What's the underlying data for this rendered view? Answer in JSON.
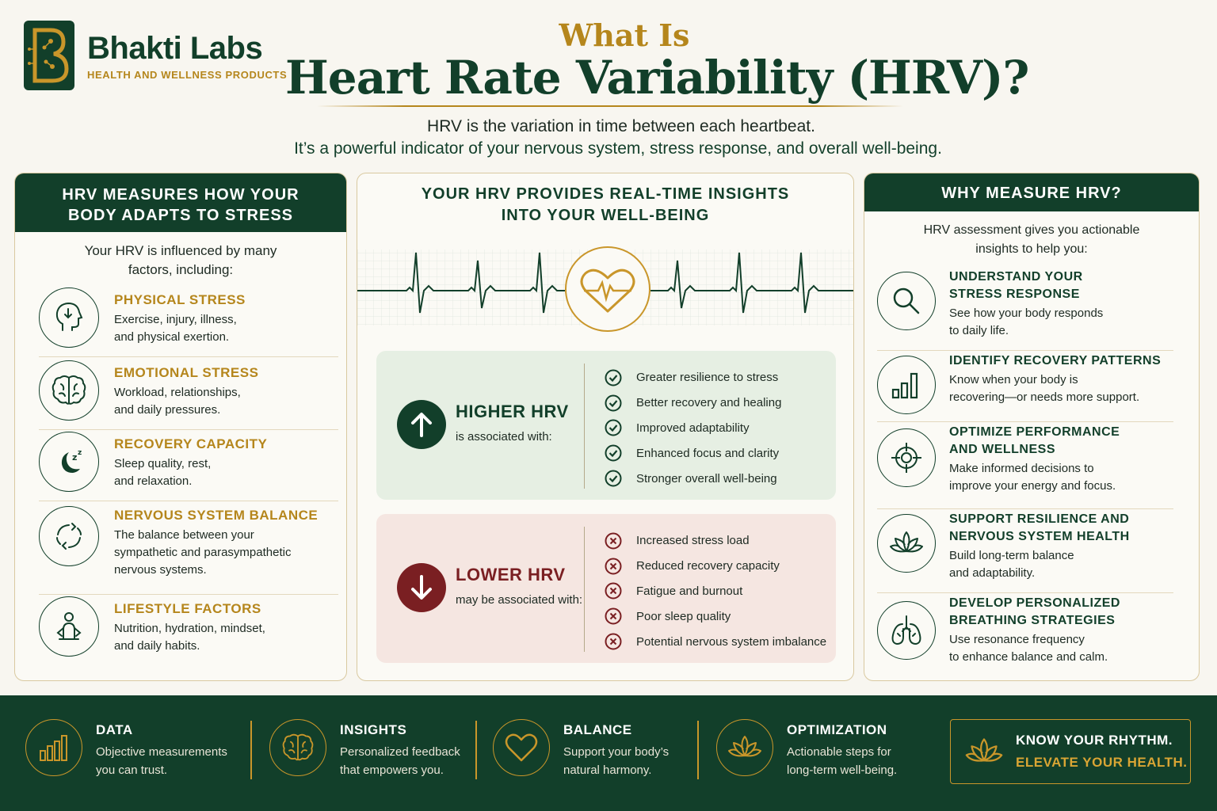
{
  "brand": {
    "name": "Bhakti Labs",
    "tagline": "HEALTH AND WELLNESS PRODUCTS",
    "colors": {
      "primary": "#123f2a",
      "accent": "#b5861c",
      "positive": "#123f2a",
      "negative": "#7a1f22"
    }
  },
  "title": {
    "small": "What Is",
    "big": "Heart Rate Variability (HRV)?"
  },
  "subtitle": {
    "line1": "HRV is the variation in time between each heartbeat.",
    "line2": "It’s a powerful indicator of your nervous system, stress response, and overall well-being."
  },
  "left": {
    "heading_line1": "HRV MEASURES HOW YOUR",
    "heading_line2": "BODY ADAPTS TO STRESS",
    "intro_line1": "Your HRV is influenced by many",
    "intro_line2": "factors, including:",
    "factors": [
      {
        "icon": "head-arrow-icon",
        "title": "PHYSICAL STRESS",
        "desc1": "Exercise, injury, illness,",
        "desc2": "and physical exertion.",
        "desc3": ""
      },
      {
        "icon": "brain-icon",
        "title": "EMOTIONAL STRESS",
        "desc1": "Workload, relationships,",
        "desc2": "and daily pressures.",
        "desc3": ""
      },
      {
        "icon": "moon-icon",
        "title": "RECOVERY CAPACITY",
        "desc1": "Sleep quality, rest,",
        "desc2": "and relaxation.",
        "desc3": ""
      },
      {
        "icon": "cycle-icon",
        "title": "NERVOUS SYSTEM BALANCE",
        "desc1": "The balance between your",
        "desc2": "sympathetic and parasympathetic",
        "desc3": "nervous systems."
      },
      {
        "icon": "person-icon",
        "title": "LIFESTYLE FACTORS",
        "desc1": "Nutrition, hydration, mindset,",
        "desc2": "and daily habits.",
        "desc3": ""
      }
    ]
  },
  "middle": {
    "heading_line1": "YOUR HRV PROVIDES REAL-TIME INSIGHTS",
    "heading_line2": "INTO YOUR WELL-BEING",
    "higher": {
      "label": "HIGHER HRV",
      "sub": "is associated with:",
      "items": [
        "Greater resilience to stress",
        "Better recovery and healing",
        "Improved adaptability",
        "Enhanced focus and clarity",
        "Stronger overall well-being"
      ]
    },
    "lower": {
      "label": "LOWER HRV",
      "sub": "may be associated with:",
      "items": [
        "Increased stress load",
        "Reduced recovery capacity",
        "Fatigue and burnout",
        "Poor sleep quality",
        "Potential nervous system imbalance"
      ]
    }
  },
  "right": {
    "heading": "WHY MEASURE HRV?",
    "intro_line1": "HRV assessment gives you actionable",
    "intro_line2": "insights to help you:",
    "items": [
      {
        "icon": "magnifier-icon",
        "title1": "UNDERSTAND YOUR",
        "title2": "STRESS RESPONSE",
        "desc1": "See how your body responds",
        "desc2": "to daily life."
      },
      {
        "icon": "bar-chart-icon",
        "title1": "IDENTIFY RECOVERY PATTERNS",
        "title2": "",
        "desc1": "Know when your body is",
        "desc2": "recovering—or needs more support."
      },
      {
        "icon": "target-icon",
        "title1": "OPTIMIZE PERFORMANCE",
        "title2": "AND WELLNESS",
        "desc1": "Make informed decisions to",
        "desc2": "improve your energy and focus."
      },
      {
        "icon": "lotus-icon",
        "title1": "SUPPORT RESILIENCE AND",
        "title2": "NERVOUS SYSTEM HEALTH",
        "desc1": "Build long-term balance",
        "desc2": "and adaptability."
      },
      {
        "icon": "lungs-icon",
        "title1": "DEVELOP PERSONALIZED",
        "title2": "BREATHING STRATEGIES",
        "desc1": "Use resonance frequency",
        "desc2": "to enhance balance and calm."
      }
    ]
  },
  "footer": {
    "items": [
      {
        "icon": "bar-chart-icon",
        "title": "DATA",
        "desc1": "Objective measurements",
        "desc2": "you can trust."
      },
      {
        "icon": "brain-icon",
        "title": "INSIGHTS",
        "desc1": "Personalized feedback",
        "desc2": "that empowers you."
      },
      {
        "icon": "heart-icon",
        "title": "BALANCE",
        "desc1": "Support your body’s",
        "desc2": "natural harmony."
      },
      {
        "icon": "lotus-icon",
        "title": "OPTIMIZATION",
        "desc1": "Actionable steps for",
        "desc2": "long-term well-being."
      }
    ],
    "cta_line1": "KNOW YOUR RHYTHM.",
    "cta_line2": "ELEVATE YOUR HEALTH."
  }
}
